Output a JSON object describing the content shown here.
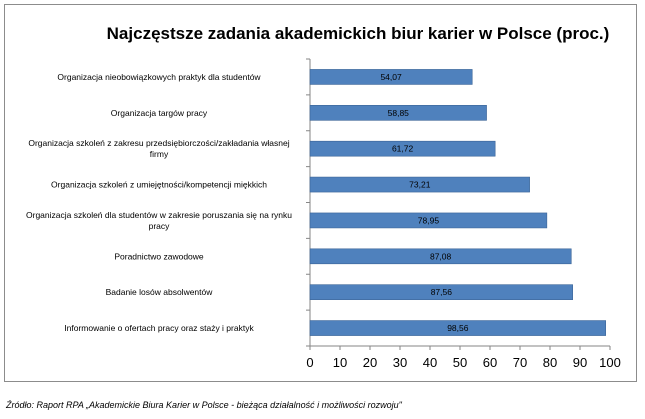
{
  "chart_data": {
    "type": "bar",
    "orientation": "horizontal",
    "title": "Najczęstsze zadania akademickich biur karier w Polsce (proc.)",
    "categories": [
      [
        "Organizacja nieobowiązkowych praktyk dla studentów"
      ],
      [
        "Organizacja targów pracy"
      ],
      [
        "Organizacja szkoleń z zakresu przedsiębiorczości/zakładania własnej",
        "firmy"
      ],
      [
        "Organizacja szkoleń z umiejętności/kompetencji miękkich"
      ],
      [
        "Organizacja szkoleń dla studentów w zakresie  poruszania się na rynku",
        "pracy"
      ],
      [
        "Poradnictwo zawodowe"
      ],
      [
        "Badanie losów absolwentów"
      ],
      [
        "Informowanie o ofertach pracy oraz staży i praktyk"
      ]
    ],
    "values": [
      54.07,
      58.85,
      61.72,
      73.21,
      78.95,
      87.08,
      87.56,
      98.56
    ],
    "value_labels": [
      "54,07",
      "58,85",
      "61,72",
      "73,21",
      "78,95",
      "87,08",
      "87,56",
      "98,56"
    ],
    "xlim": [
      0,
      100
    ],
    "xticks": [
      0,
      10,
      20,
      30,
      40,
      50,
      60,
      70,
      80,
      90,
      100
    ],
    "bar_color": "#4f81bd",
    "bar_border_color": "#3a6396",
    "grid": false,
    "legend": "none"
  },
  "source_note": "Źródło: Raport RPA „Akademickie Biura Karier w Polsce - bieżąca działalność i możliwości rozwoju\""
}
